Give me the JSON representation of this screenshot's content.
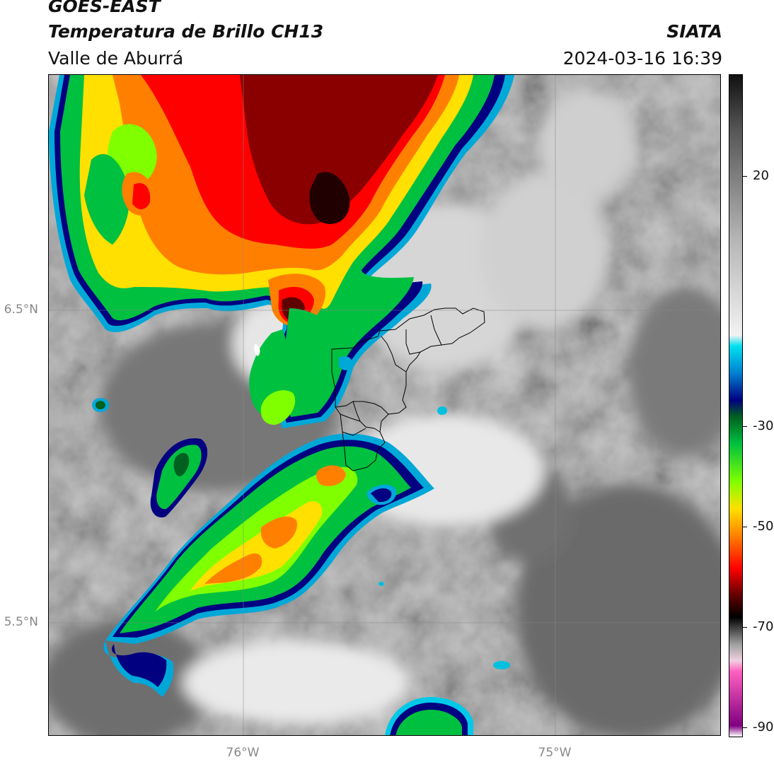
{
  "header": {
    "satellite": "GOES-EAST",
    "product": "Temperatura de Brillo CH13",
    "region": "Valle de Aburrá",
    "organization": "SIATA",
    "datetime": "2024-03-16 16:39"
  },
  "map": {
    "lat_labels": [
      "6.5°N",
      "5.5°N"
    ],
    "lon_labels": [
      "76°W",
      "75°W"
    ],
    "gridlines": true
  },
  "colorbar": {
    "tick_labels": [
      "20",
      "-30",
      "-50",
      "-70",
      "-90"
    ],
    "range": [
      -92,
      30
    ],
    "stops": [
      {
        "v": 30,
        "c": "#101010"
      },
      {
        "v": 20,
        "c": "#555555"
      },
      {
        "v": 0,
        "c": "#b4b4b4"
      },
      {
        "v": -18,
        "c": "#f2f2f2"
      },
      {
        "v": -20,
        "c": "#00e0f0"
      },
      {
        "v": -25,
        "c": "#0080d0"
      },
      {
        "v": -30,
        "c": "#000080"
      },
      {
        "v": -33,
        "c": "#006020"
      },
      {
        "v": -38,
        "c": "#00c040"
      },
      {
        "v": -45,
        "c": "#80ff00"
      },
      {
        "v": -50,
        "c": "#ffe000"
      },
      {
        "v": -55,
        "c": "#ff8000"
      },
      {
        "v": -61,
        "c": "#ff0000"
      },
      {
        "v": -66,
        "c": "#600000"
      },
      {
        "v": -70,
        "c": "#000000"
      },
      {
        "v": -75,
        "c": "#a0a0a0"
      },
      {
        "v": -78,
        "c": "#f0d0e0"
      },
      {
        "v": -80,
        "c": "#ff60c0"
      },
      {
        "v": -90,
        "c": "#800080"
      },
      {
        "v": -92,
        "c": "#ffffff"
      }
    ]
  }
}
